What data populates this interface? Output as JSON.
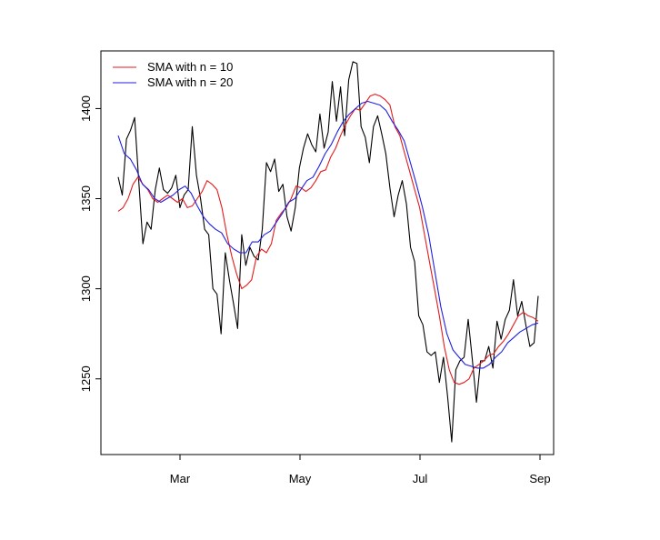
{
  "chart_data": {
    "type": "line",
    "title": "",
    "xlabel": "",
    "ylabel": "",
    "ylim": [
      1208,
      1432
    ],
    "x_ticks": [
      "Mar",
      "May",
      "Jul",
      "Sep"
    ],
    "y_ticks": [
      1250,
      1300,
      1350,
      1400
    ],
    "legend": {
      "placement": "top-left",
      "entries": [
        {
          "label": "SMA with n = 10",
          "color": "#e41a1c"
        },
        {
          "label": "SMA with n = 20",
          "color": "#1f1fe0"
        }
      ]
    },
    "series": [
      {
        "color": "#000000",
        "values": [
          1362,
          1352,
          1383,
          1388,
          1395,
          1360,
          1325,
          1337,
          1333,
          1355,
          1367,
          1355,
          1353,
          1356,
          1363,
          1345,
          1352,
          1355,
          1390,
          1363,
          1350,
          1333,
          1330,
          1300,
          1297,
          1275,
          1320,
          1305,
          1292,
          1278,
          1330,
          1313,
          1323,
          1318,
          1316,
          1333,
          1370,
          1365,
          1372,
          1354,
          1358,
          1340,
          1332,
          1345,
          1367,
          1378,
          1386,
          1380,
          1376,
          1397,
          1378,
          1387,
          1415,
          1393,
          1412,
          1385,
          1416,
          1426,
          1425,
          1390,
          1384,
          1370,
          1390,
          1396,
          1386,
          1375,
          1356,
          1340,
          1352,
          1360,
          1347,
          1323,
          1315,
          1285,
          1280,
          1265,
          1263,
          1265,
          1248,
          1262,
          1240,
          1215,
          1255,
          1260,
          1262,
          1283,
          1261,
          1237,
          1260,
          1260,
          1268,
          1256,
          1282,
          1272,
          1283,
          1288,
          1305,
          1285,
          1293,
          1280,
          1268,
          1270,
          1296
        ]
      },
      {
        "name": "SMA with n = 10",
        "color": "#e41a1c",
        "values": [
          1343,
          1345,
          1350,
          1358,
          1362,
          1358,
          1355,
          1350,
          1348,
          1350,
          1352,
          1350,
          1348,
          1350,
          1345,
          1346,
          1350,
          1354,
          1360,
          1358,
          1355,
          1345,
          1330,
          1318,
          1308,
          1300,
          1302,
          1305,
          1318,
          1322,
          1320,
          1325,
          1338,
          1342,
          1345,
          1350,
          1357,
          1356,
          1354,
          1356,
          1360,
          1365,
          1366,
          1373,
          1378,
          1385,
          1391,
          1396,
          1400,
          1399,
          1403,
          1407,
          1408,
          1407,
          1405,
          1402,
          1390,
          1385,
          1375,
          1365,
          1355,
          1345,
          1330,
          1315,
          1300,
          1285,
          1268,
          1255,
          1248,
          1247,
          1248,
          1250,
          1256,
          1258,
          1260,
          1263,
          1264,
          1268,
          1271,
          1275,
          1280,
          1285,
          1287,
          1285,
          1284,
          1282
        ]
      },
      {
        "name": "SMA with n = 20",
        "color": "#1f1fe0",
        "values": [
          1385,
          1375,
          1372,
          1366,
          1358,
          1355,
          1350,
          1348,
          1350,
          1352,
          1355,
          1357,
          1353,
          1346,
          1340,
          1336,
          1333,
          1331,
          1325,
          1322,
          1320,
          1320,
          1326,
          1326,
          1330,
          1332,
          1337,
          1342,
          1348,
          1350,
          1355,
          1360,
          1362,
          1368,
          1375,
          1380,
          1387,
          1393,
          1397,
          1400,
          1403,
          1404,
          1403,
          1402,
          1399,
          1393,
          1388,
          1382,
          1370,
          1358,
          1345,
          1330,
          1310,
          1290,
          1275,
          1266,
          1262,
          1258,
          1257,
          1256,
          1256,
          1258,
          1262,
          1265,
          1270,
          1273,
          1276,
          1278,
          1280,
          1281
        ]
      }
    ]
  }
}
